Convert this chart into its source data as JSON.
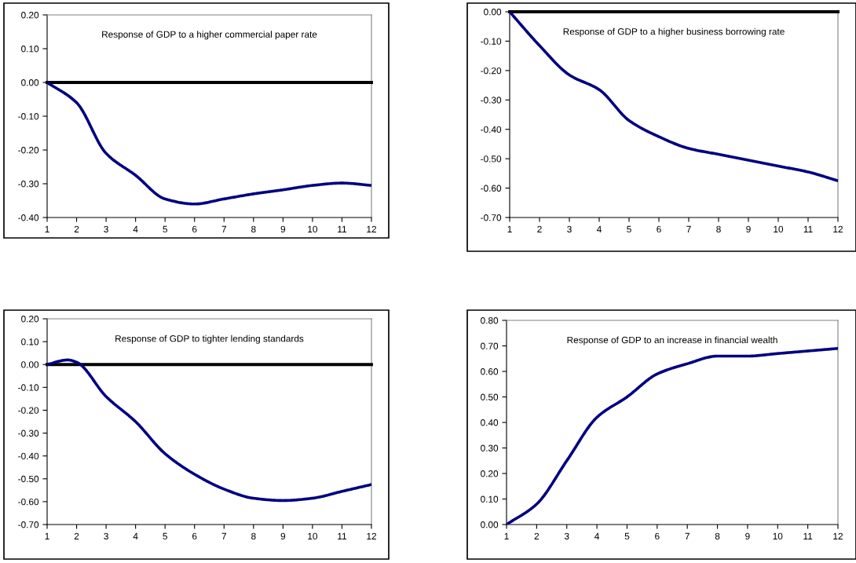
{
  "chart_data": [
    {
      "type": "line",
      "title": "Response of GDP to a higher commercial paper rate",
      "x": [
        1,
        2,
        3,
        4,
        5,
        6,
        7,
        8,
        9,
        10,
        11,
        12
      ],
      "series": [
        {
          "color": "#000080",
          "values": [
            0,
            -0.06,
            -0.21,
            -0.275,
            -0.345,
            -0.36,
            -0.345,
            -0.33,
            -0.318,
            -0.305,
            -0.298,
            -0.305
          ]
        }
      ],
      "xlim": [
        1,
        12
      ],
      "xticks": [
        1,
        2,
        3,
        4,
        5,
        6,
        7,
        8,
        9,
        10,
        11,
        12
      ],
      "ylim": [
        -0.4,
        0.2
      ],
      "yticks": [
        {
          "value": -0.4,
          "label": "-0.40"
        },
        {
          "value": -0.3,
          "label": "-0.30"
        },
        {
          "value": -0.2,
          "label": "-0.20"
        },
        {
          "value": -0.1,
          "label": "-0.10"
        },
        {
          "value": 0,
          "label": "0.00"
        },
        {
          "value": 0.1,
          "label": "0.10"
        },
        {
          "value": 0.2,
          "label": "0.20"
        }
      ],
      "ref_lines": [
        {
          "axis": "y",
          "value": 0,
          "color": "#000000"
        }
      ],
      "grid": false,
      "legend": false
    },
    {
      "type": "line",
      "title": "Response of GDP to a higher business borrowing rate",
      "x": [
        1,
        2,
        3,
        4,
        5,
        6,
        7,
        8,
        9,
        10,
        11,
        12
      ],
      "series": [
        {
          "color": "#000080",
          "values": [
            0,
            -0.115,
            -0.215,
            -0.265,
            -0.37,
            -0.425,
            -0.465,
            -0.485,
            -0.505,
            -0.525,
            -0.545,
            -0.575
          ]
        }
      ],
      "xlim": [
        1,
        12
      ],
      "xticks": [
        1,
        2,
        3,
        4,
        5,
        6,
        7,
        8,
        9,
        10,
        11,
        12
      ],
      "ylim": [
        -0.7,
        0
      ],
      "yticks": [
        {
          "value": -0.7,
          "label": "-0.70"
        },
        {
          "value": -0.6,
          "label": "-0.60"
        },
        {
          "value": -0.5,
          "label": "-0.50"
        },
        {
          "value": -0.4,
          "label": "-0.40"
        },
        {
          "value": -0.3,
          "label": "-0.30"
        },
        {
          "value": -0.2,
          "label": "-0.20"
        },
        {
          "value": -0.1,
          "label": "-0.10"
        },
        {
          "value": 0,
          "label": "0.00"
        }
      ],
      "ref_lines": [
        {
          "axis": "y",
          "value": 0,
          "color": "#000000"
        }
      ],
      "grid": false,
      "legend": false
    },
    {
      "type": "line",
      "title": "Response of GDP to tighter lending standards",
      "x": [
        1,
        1.7,
        2,
        3,
        4,
        5,
        6,
        7,
        8,
        9,
        10,
        11,
        12
      ],
      "series": [
        {
          "color": "#000080",
          "values": [
            0,
            0.02,
            0.01,
            -0.14,
            -0.25,
            -0.39,
            -0.48,
            -0.545,
            -0.585,
            -0.595,
            -0.585,
            -0.555,
            -0.525
          ]
        }
      ],
      "xlim": [
        1,
        12
      ],
      "xticks": [
        1,
        2,
        3,
        4,
        5,
        6,
        7,
        8,
        9,
        10,
        11,
        12
      ],
      "ylim": [
        -0.7,
        0.2
      ],
      "yticks": [
        {
          "value": -0.7,
          "label": "-0.70"
        },
        {
          "value": -0.6,
          "label": "-0.60"
        },
        {
          "value": -0.5,
          "label": "-0.50"
        },
        {
          "value": -0.4,
          "label": "-0.40"
        },
        {
          "value": -0.3,
          "label": "-0.30"
        },
        {
          "value": -0.2,
          "label": "-0.20"
        },
        {
          "value": -0.1,
          "label": "-0.10"
        },
        {
          "value": 0,
          "label": "0.00"
        },
        {
          "value": 0.1,
          "label": "0.10"
        },
        {
          "value": 0.2,
          "label": "0.20"
        }
      ],
      "ref_lines": [
        {
          "axis": "y",
          "value": 0,
          "color": "#000000"
        }
      ],
      "grid": false,
      "legend": false
    },
    {
      "type": "line",
      "title": "Response of GDP to an increase in financial wealth",
      "x": [
        1,
        2,
        3,
        4,
        5,
        6,
        7,
        8,
        9,
        10,
        11,
        12
      ],
      "series": [
        {
          "color": "#000080",
          "values": [
            0,
            0.08,
            0.25,
            0.42,
            0.5,
            0.59,
            0.63,
            0.66,
            0.66,
            0.67,
            0.68,
            0.69
          ]
        }
      ],
      "xlim": [
        1,
        12
      ],
      "xticks": [
        1,
        2,
        3,
        4,
        5,
        6,
        7,
        8,
        9,
        10,
        11,
        12
      ],
      "ylim": [
        0,
        0.8
      ],
      "yticks": [
        {
          "value": 0,
          "label": "0.00"
        },
        {
          "value": 0.1,
          "label": "0.10"
        },
        {
          "value": 0.2,
          "label": "0.20"
        },
        {
          "value": 0.3,
          "label": "0.30"
        },
        {
          "value": 0.4,
          "label": "0.40"
        },
        {
          "value": 0.5,
          "label": "0.50"
        },
        {
          "value": 0.6,
          "label": "0.60"
        },
        {
          "value": 0.7,
          "label": "0.70"
        },
        {
          "value": 0.8,
          "label": "0.80"
        }
      ],
      "grid": false,
      "legend": false
    }
  ]
}
